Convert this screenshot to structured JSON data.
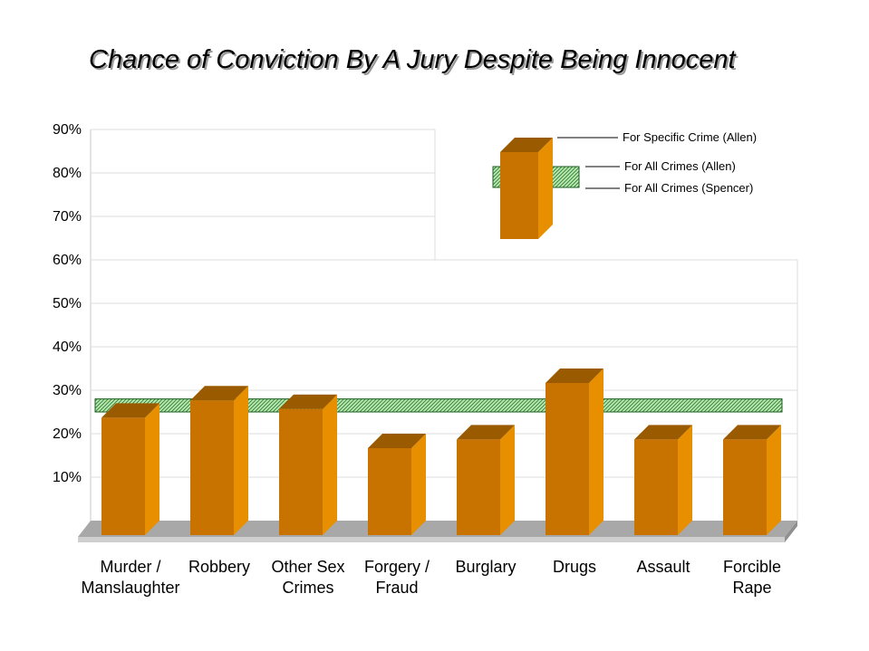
{
  "chart_data": {
    "type": "bar",
    "title": "Chance of Conviction By A Jury Despite Being Innocent",
    "categories": [
      [
        "Murder /",
        "Manslaughter"
      ],
      [
        "Robbery"
      ],
      [
        "Other Sex",
        "Crimes"
      ],
      [
        "Forgery /",
        "Fraud"
      ],
      [
        "Burglary"
      ],
      [
        "Drugs"
      ],
      [
        "Assault"
      ],
      [
        "Forcible",
        "Rape"
      ]
    ],
    "series": [
      {
        "name": "For Specific Crime (Allen)",
        "values": [
          27,
          31,
          29,
          20,
          22,
          35,
          22,
          22
        ]
      }
    ],
    "reference_band": {
      "upper_label": "For All Crimes (Allen)",
      "upper": 28,
      "lower_label": "For All Crimes (Spencer)",
      "lower": 25
    },
    "yticks": [
      "90%",
      "80%",
      "70%",
      "60%",
      "50%",
      "40%",
      "30%",
      "20%",
      "10%"
    ],
    "ytick_values": [
      90,
      80,
      70,
      60,
      50,
      40,
      30,
      20,
      10
    ],
    "ylim": [
      0,
      90
    ],
    "grid": true,
    "legend_position": "top-right",
    "colors": {
      "bar_front": "#C87200",
      "bar_side": "#E88F00",
      "bar_top": "#9A5A00",
      "band_fill": "#4CAF50",
      "floor": "#A8A8A8"
    }
  }
}
